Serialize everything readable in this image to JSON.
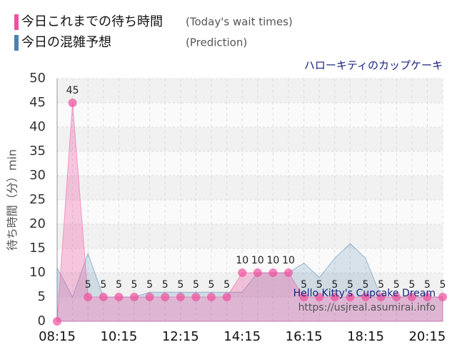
{
  "chart_data": {
    "type": "area",
    "title": "ハローキティのカップケーキ",
    "y_label": "待ち時間（分）min",
    "watermark": [
      "Hello Kitty's Cupcake Dream",
      "https://usjreal.asumirai.info"
    ],
    "categories": [
      "08:15",
      null,
      null,
      null,
      "10:15",
      null,
      null,
      null,
      "12:15",
      null,
      null,
      null,
      "14:15",
      null,
      null,
      null,
      "16:15",
      null,
      null,
      null,
      "18:15",
      null,
      null,
      null,
      "20:15",
      null
    ],
    "series": [
      {
        "name": "今日これまでの待ち時間",
        "name_en": "(Today's wait times)",
        "color": "#f0509e",
        "values": [
          0,
          45,
          5,
          5,
          5,
          5,
          5,
          5,
          5,
          5,
          5,
          5,
          10,
          10,
          10,
          10,
          5,
          5,
          5,
          5,
          5,
          5,
          5,
          5,
          5,
          5
        ]
      },
      {
        "name": "今日の混雑予想",
        "name_en": "(Prediction)",
        "color": "#4a82b0",
        "values": [
          11,
          5,
          14,
          5,
          5,
          5,
          6,
          6,
          6,
          6,
          6,
          6,
          6,
          10,
          10,
          10,
          12,
          9,
          13,
          16,
          13,
          5,
          5,
          5,
          5,
          5
        ]
      }
    ],
    "ylim": [
      0,
      50
    ],
    "yticks": [
      0,
      5,
      10,
      15,
      20,
      25,
      30,
      35,
      40,
      45,
      50
    ],
    "grid": true
  }
}
